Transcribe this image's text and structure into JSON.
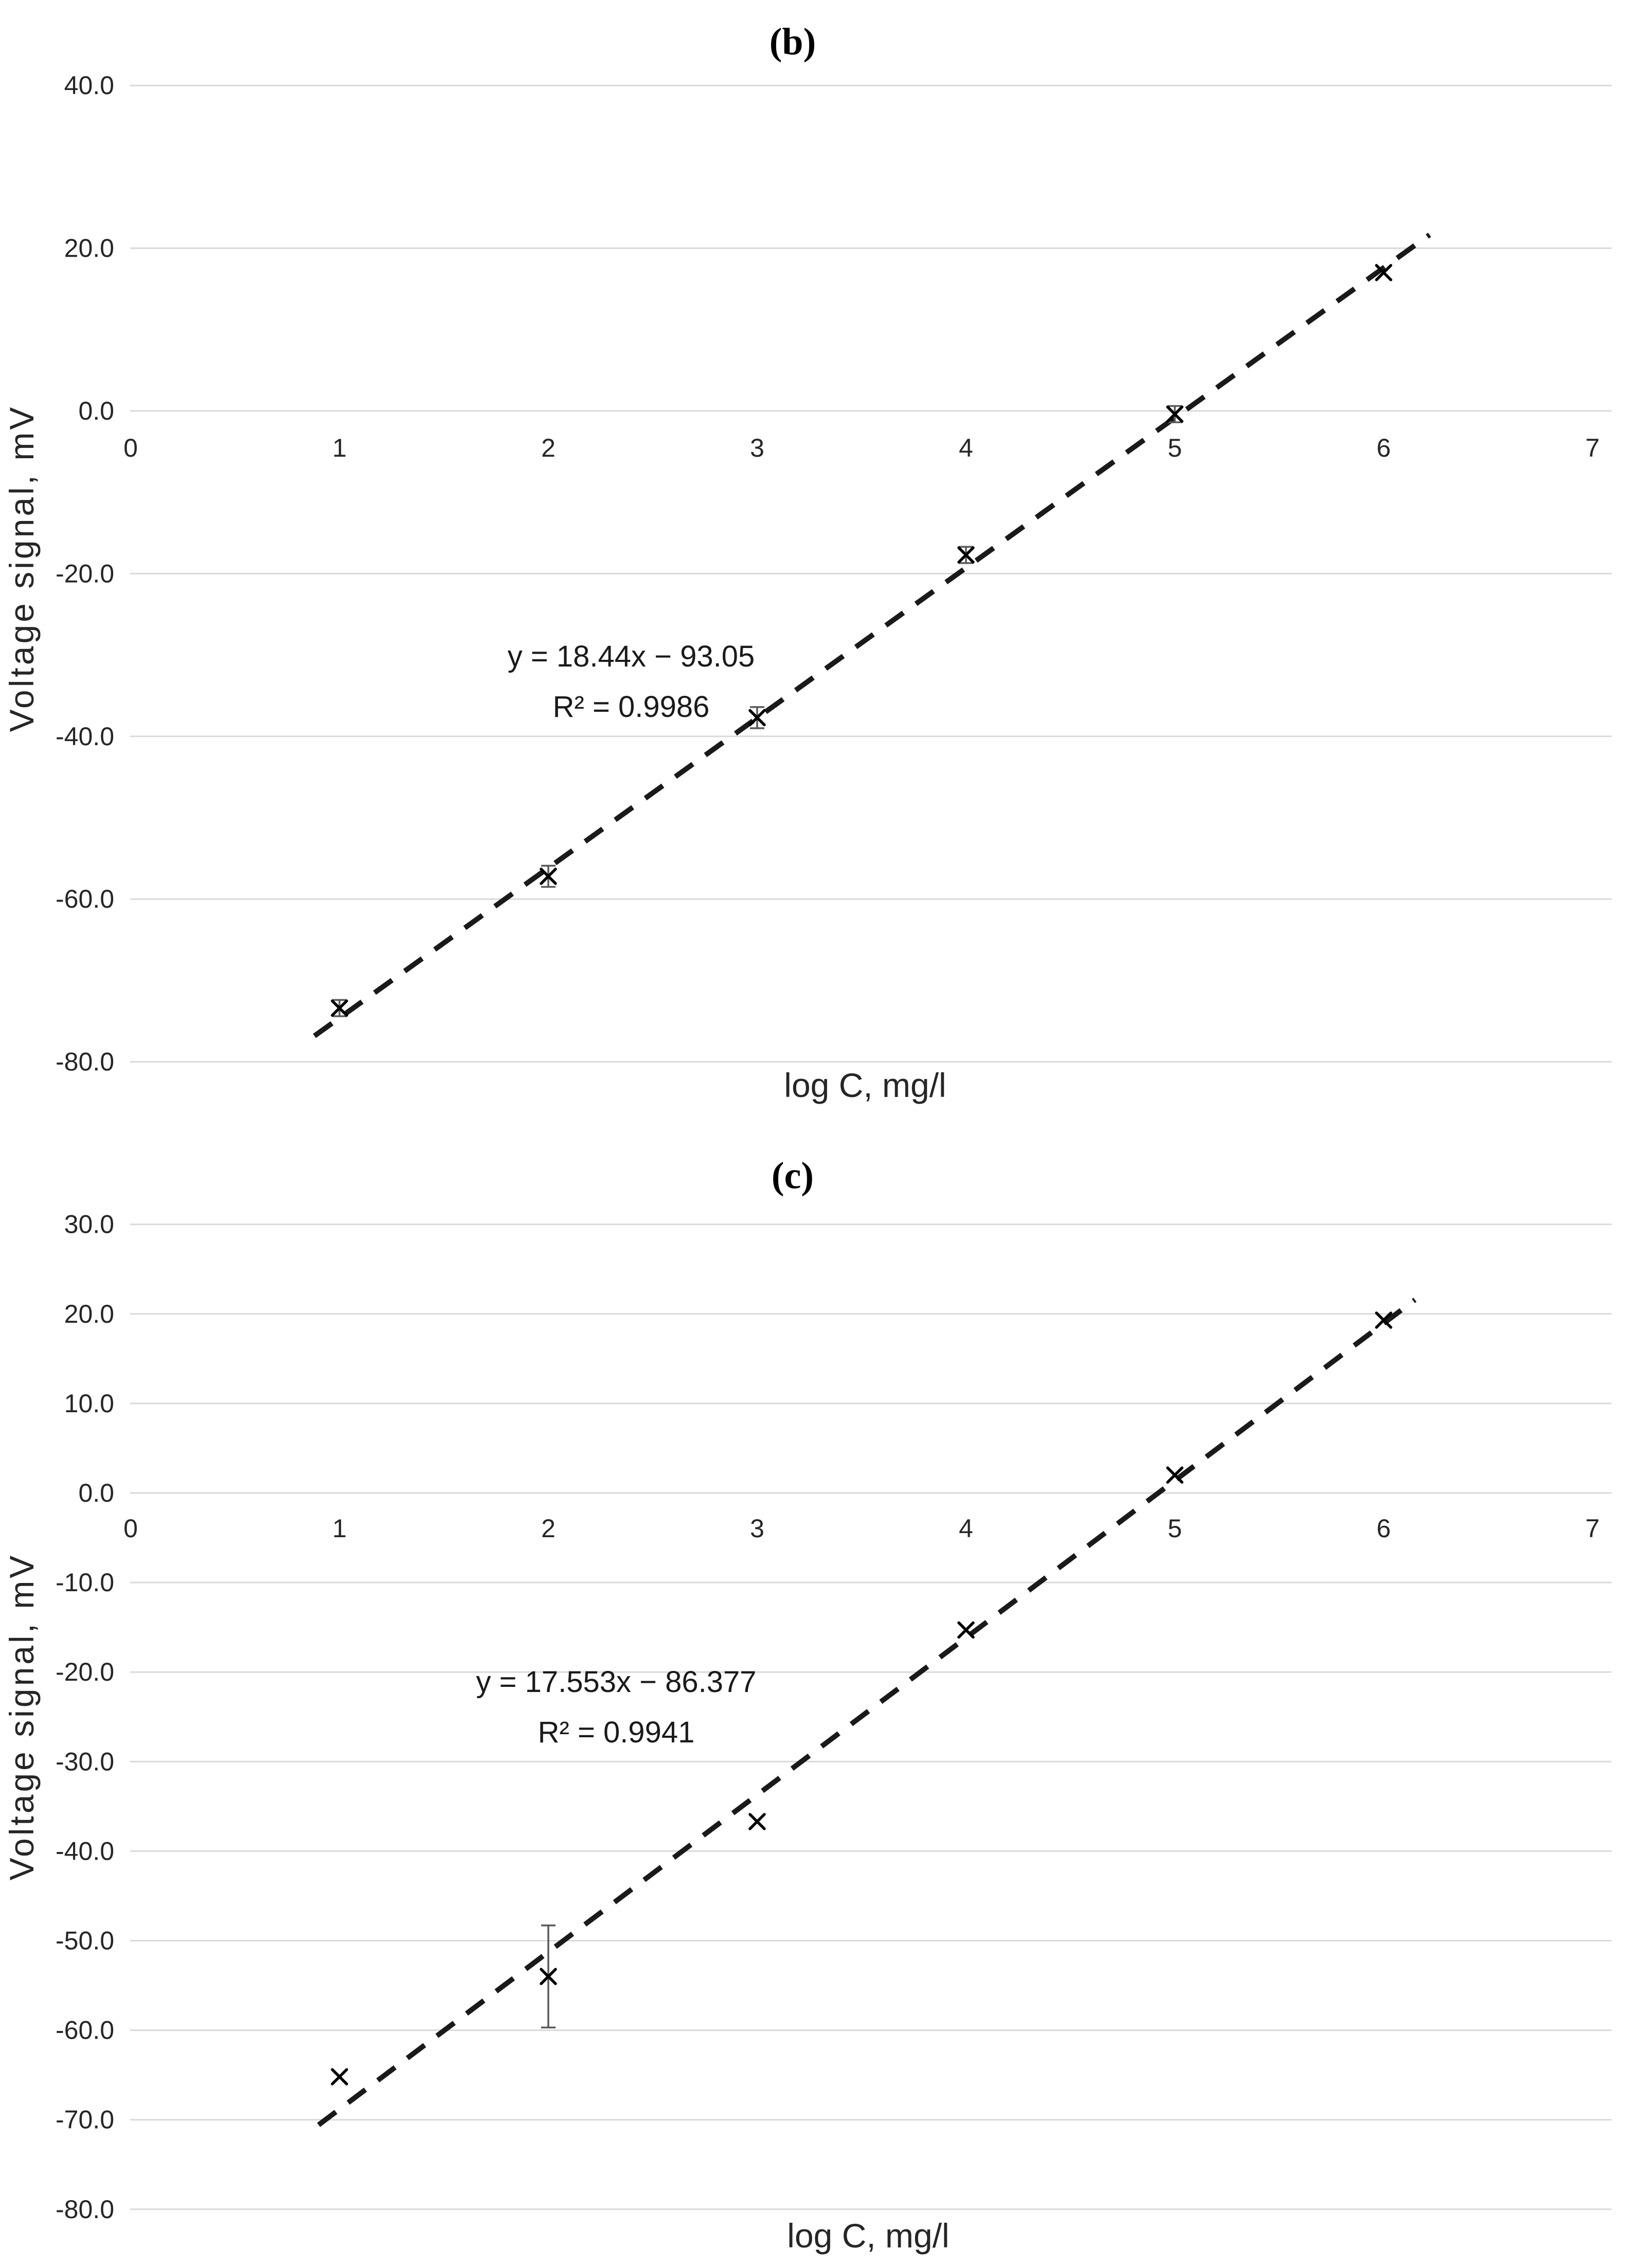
{
  "colors": {
    "background": "#ffffff",
    "gridline": "#d9d9d9",
    "tick_text": "#262626",
    "marker": "#000000",
    "trendline": "#1a1a1a",
    "error_bar": "#595959"
  },
  "chart_data": [
    {
      "type": "scatter",
      "panel": "b",
      "title": "(b)",
      "xlabel": "log C, mg/l",
      "ylabel": "Voltage signal, mV",
      "equation": "y = 18.44x − 93.05",
      "r_squared": "R² = 0.9986",
      "marker": "x-cross",
      "grid": "horizontal-only",
      "legend": "none",
      "xlim": [
        0,
        7
      ],
      "ylim": [
        -80,
        40
      ],
      "ystep": 20,
      "xticks": [
        0,
        1,
        2,
        3,
        4,
        5,
        6,
        7
      ],
      "xtick_labels": [
        "0",
        "1",
        "2",
        "3",
        "4",
        "5",
        "6",
        "7"
      ],
      "ytick_labels": [
        "40.0",
        "20.0",
        "0.0",
        "-20.0",
        "-40.0",
        "-60.0",
        "-80.0"
      ],
      "x": [
        1,
        2,
        3,
        4,
        5,
        6
      ],
      "y": [
        -73.4,
        -57.2,
        -37.7,
        -17.7,
        -0.4,
        17.0
      ],
      "y_err": [
        1.0,
        1.3,
        1.3,
        1.0,
        1.0,
        0
      ],
      "trendline": {
        "style": "dashed",
        "slope": 18.44,
        "intercept": -93.05,
        "x_start": 0.88,
        "x_end": 6.22
      }
    },
    {
      "type": "scatter",
      "panel": "c",
      "title": "(c)",
      "xlabel": "log C, mg/l",
      "ylabel": "Voltage signal, mV",
      "equation": "y = 17.553x − 86.377",
      "r_squared": "R² = 0.9941",
      "marker": "x-cross",
      "grid": "horizontal-only",
      "legend": "none",
      "xlim": [
        0,
        7
      ],
      "ylim": [
        -80,
        30
      ],
      "ystep": 10,
      "xticks": [
        0,
        1,
        2,
        3,
        4,
        5,
        6,
        7
      ],
      "xtick_labels": [
        "0",
        "1",
        "2",
        "3",
        "4",
        "5",
        "6",
        "7"
      ],
      "ytick_labels": [
        "30.0",
        "20.0",
        "10.0",
        "0.0",
        "-10.0",
        "-20.0",
        "-30.0",
        "-40.0",
        "-50.0",
        "-60.0",
        "-70.0",
        "-80.0"
      ],
      "x": [
        1,
        2,
        3,
        4,
        5,
        6
      ],
      "y": [
        -65.2,
        -54.0,
        -36.7,
        -15.3,
        2.0,
        19.3
      ],
      "y_err": [
        0,
        5.7,
        0,
        0,
        0,
        0
      ],
      "trendline": {
        "style": "dashed",
        "slope": 17.553,
        "intercept": -86.377,
        "x_start": 0.9,
        "x_end": 6.15
      }
    }
  ]
}
